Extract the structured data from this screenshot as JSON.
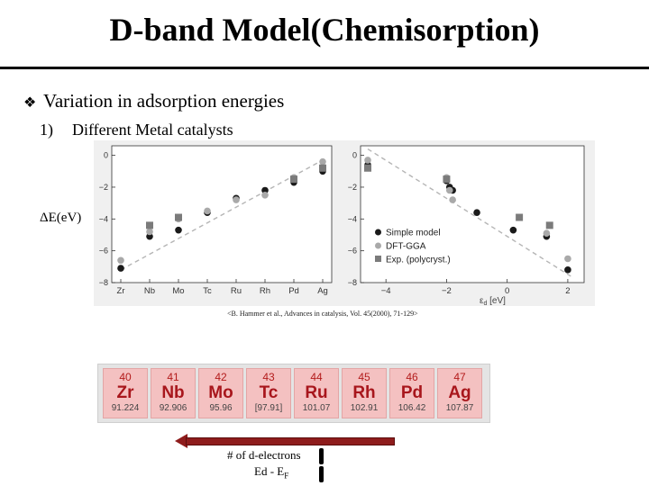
{
  "slide": {
    "title": "D-band Model(Chemisorption)",
    "bullet_icon": "diamond-bullet-icon",
    "bullet": "Variation in adsorption energies",
    "sub_number": "1)",
    "sub_text": "Different Metal catalysts",
    "ylabel": "ΔE(eV)",
    "citation": "<B. Hammer et al., Advances in catalysis, Vol. 45(2000), 71-129>",
    "arrow_label_1": "# of d-electrons",
    "arrow_label_2_main": "Ed - E",
    "arrow_label_2_sub": "F"
  },
  "periodic_table": [
    {
      "z": "40",
      "symbol": "Zr",
      "mass": "91.224"
    },
    {
      "z": "41",
      "symbol": "Nb",
      "mass": "92.906"
    },
    {
      "z": "42",
      "symbol": "Mo",
      "mass": "95.96"
    },
    {
      "z": "43",
      "symbol": "Tc",
      "mass": "[97.91]"
    },
    {
      "z": "44",
      "symbol": "Ru",
      "mass": "101.07"
    },
    {
      "z": "45",
      "symbol": "Rh",
      "mass": "102.91"
    },
    {
      "z": "46",
      "symbol": "Pd",
      "mass": "106.42"
    },
    {
      "z": "47",
      "symbol": "Ag",
      "mass": "107.87"
    }
  ],
  "chart_data": [
    {
      "type": "scatter",
      "categories": [
        "Zr",
        "Nb",
        "Mo",
        "Tc",
        "Ru",
        "Rh",
        "Pd",
        "Ag"
      ],
      "ylim": [
        -8,
        0.6
      ],
      "yticks": [
        "0",
        "−2",
        "−4",
        "−6",
        "−8"
      ],
      "ytick_values": [
        0,
        -2,
        -4,
        -6,
        -8
      ],
      "grid": false,
      "series": [
        {
          "key": "simple",
          "color": "#1a1a1a",
          "marker": "circle",
          "values": [
            -7.1,
            -5.1,
            -4.7,
            -3.6,
            -2.7,
            -2.2,
            -1.7,
            -1.0
          ]
        },
        {
          "key": "dft",
          "color": "#a9a9a9",
          "marker": "circle",
          "values": [
            -6.6,
            -4.8,
            -4.0,
            -3.5,
            -2.8,
            -2.5,
            -1.4,
            -0.4
          ]
        },
        {
          "key": "exp",
          "color": "#7b7b7b",
          "marker": "square",
          "values": [
            null,
            -4.4,
            -3.9,
            null,
            null,
            null,
            -1.5,
            -0.8
          ]
        }
      ],
      "fit_line": [
        [
          0,
          -7.2
        ],
        [
          7,
          -0.3
        ]
      ]
    },
    {
      "type": "scatter",
      "xlabel_main": "ε",
      "xlabel_sub": "d",
      "xlabel_unit": " [eV]",
      "xlim": [
        -4.6,
        2.3
      ],
      "ylim": [
        -8,
        0.6
      ],
      "xticks": [
        "−4",
        "−2",
        "0",
        "2"
      ],
      "xtick_values": [
        -4,
        -2,
        0,
        2
      ],
      "yticks": [
        "0",
        "−2",
        "−4",
        "−6",
        "−8"
      ],
      "ytick_values": [
        0,
        -2,
        -4,
        -6,
        -8
      ],
      "legend_position": "center-left",
      "series": [
        {
          "name": "Simple model",
          "color": "#1a1a1a",
          "marker": "circle",
          "points": [
            [
              -4.6,
              -0.6
            ],
            [
              -2.0,
              -1.6
            ],
            [
              -1.9,
              -2.0
            ],
            [
              -1.8,
              -2.2
            ],
            [
              -1.0,
              -3.6
            ],
            [
              0.2,
              -4.7
            ],
            [
              1.3,
              -5.1
            ],
            [
              2.0,
              -7.2
            ]
          ]
        },
        {
          "name": "DFT-GGA",
          "color": "#a9a9a9",
          "marker": "circle",
          "points": [
            [
              -4.6,
              -0.3
            ],
            [
              -2.0,
              -1.4
            ],
            [
              -1.9,
              -2.2
            ],
            [
              -1.8,
              -2.8
            ],
            [
              1.3,
              -4.9
            ],
            [
              2.0,
              -6.5
            ]
          ]
        },
        {
          "name": "Exp. (polycryst.)",
          "color": "#7b7b7b",
          "marker": "square",
          "points": [
            [
              -4.6,
              -0.8
            ],
            [
              -2.0,
              -1.5
            ],
            [
              0.4,
              -3.9
            ],
            [
              1.4,
              -4.4
            ]
          ]
        }
      ],
      "fit_line": [
        [
          -4.6,
          0.4
        ],
        [
          2.1,
          -7.6
        ]
      ]
    }
  ]
}
